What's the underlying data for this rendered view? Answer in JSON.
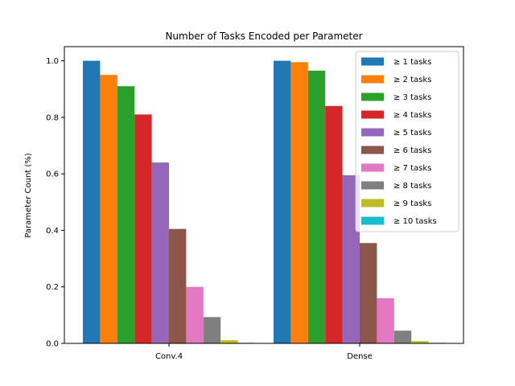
{
  "chart_data": {
    "type": "bar",
    "title": "Number of Tasks Encoded per Parameter",
    "xlabel": "",
    "ylabel": "Parameter Count (%)",
    "categories": [
      "Conv.4",
      "Dense"
    ],
    "ylim": [
      0,
      1.05
    ],
    "yticks": [
      "0.0",
      "0.2",
      "0.4",
      "0.6",
      "0.8",
      "1.0"
    ],
    "grid": false,
    "legend_position": "top-right",
    "series": [
      {
        "name": "≥ 1 tasks",
        "color": "#1f77b4",
        "values": [
          1.0,
          1.0
        ]
      },
      {
        "name": "≥ 2 tasks",
        "color": "#ff7f0e",
        "values": [
          0.95,
          0.995
        ]
      },
      {
        "name": "≥ 3 tasks",
        "color": "#2ca02c",
        "values": [
          0.91,
          0.965
        ]
      },
      {
        "name": "≥ 4 tasks",
        "color": "#d62728",
        "values": [
          0.81,
          0.84
        ]
      },
      {
        "name": "≥ 5 tasks",
        "color": "#9467bd",
        "values": [
          0.64,
          0.595
        ]
      },
      {
        "name": "≥ 6 tasks",
        "color": "#8c564b",
        "values": [
          0.405,
          0.355
        ]
      },
      {
        "name": "≥ 7 tasks",
        "color": "#e377c2",
        "values": [
          0.2,
          0.16
        ]
      },
      {
        "name": "≥ 8 tasks",
        "color": "#7f7f7f",
        "values": [
          0.093,
          0.045
        ]
      },
      {
        "name": "≥ 9 tasks",
        "color": "#bcbd22",
        "values": [
          0.011,
          0.008
        ]
      },
      {
        "name": "≥ 10 tasks",
        "color": "#17becf",
        "values": [
          0.002,
          0.002
        ]
      }
    ]
  }
}
